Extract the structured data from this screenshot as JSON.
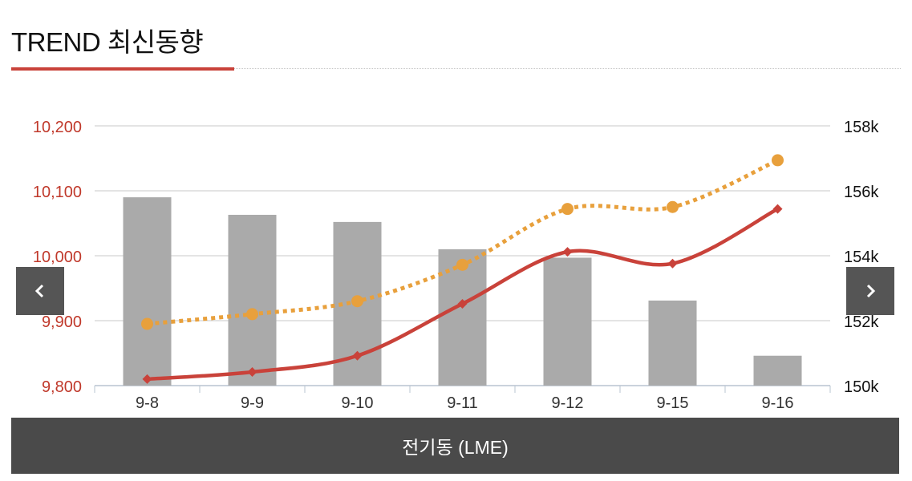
{
  "header": {
    "title": "TREND 최신동향"
  },
  "footer": {
    "label": "전기동 (LME)"
  },
  "nav": {
    "prev_icon": "chevron-left-icon",
    "next_icon": "chevron-right-icon"
  },
  "colors": {
    "bar": "#aaaaaa",
    "line_red": "#c9423a",
    "line_orange": "#e8a03c",
    "left_axis_text": "#c0392b"
  },
  "chart_data": {
    "type": "bar+line",
    "categories": [
      "9-8",
      "9-9",
      "9-10",
      "9-11",
      "9-12",
      "9-15",
      "9-16"
    ],
    "left_axis": {
      "min": 9800,
      "max": 10200,
      "ticks": [
        "10,200",
        "10,100",
        "10,000",
        "9,900",
        "9,800"
      ]
    },
    "right_axis": {
      "min": 150000,
      "max": 158000,
      "ticks": [
        "158k",
        "156k",
        "154k",
        "152k",
        "150k"
      ]
    },
    "bars": {
      "axis": "left",
      "values": [
        10090,
        10063,
        10052,
        10010,
        9997,
        9931,
        9846
      ]
    },
    "lines": [
      {
        "axis": "left",
        "style": "solid",
        "color": "#c9423a",
        "marker": "diamond",
        "values": [
          9810,
          9821,
          9846,
          9926,
          10006,
          9988,
          10072
        ]
      },
      {
        "axis": "left",
        "style": "dotted",
        "color": "#e8a03c",
        "marker": "circle",
        "values": [
          9895,
          9910,
          9930,
          9986,
          10072,
          10075,
          10147
        ]
      }
    ],
    "grid": true,
    "legend": "none"
  }
}
